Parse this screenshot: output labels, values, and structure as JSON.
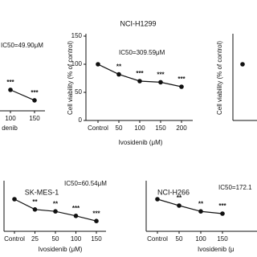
{
  "chart_data": [
    {
      "type": "line",
      "annotation": "IC50=49.90μM",
      "x_label": "denib",
      "categories": [
        "100",
        "150"
      ],
      "values": [
        40,
        20
      ],
      "significance": [
        "***",
        "***"
      ],
      "ylim": [
        0,
        150
      ],
      "color": "#111111"
    },
    {
      "type": "line",
      "title": "NCI-H1299",
      "annotation": "IC50=309.59μM",
      "x_label": "Ivosidenib (μM)",
      "y_label": "Cell viability (% of control)",
      "categories": [
        "Control",
        "50",
        "100",
        "150",
        "200"
      ],
      "values": [
        100,
        82,
        70,
        68,
        60
      ],
      "significance": [
        null,
        "**",
        "***",
        "***",
        "***"
      ],
      "ylim": [
        0,
        150
      ],
      "yticks": [
        0,
        50,
        100,
        150
      ],
      "color": "#111111"
    },
    {
      "type": "line",
      "y_label": "Cell viability (% of control)",
      "values": [
        100
      ],
      "ylim": [
        0,
        150
      ],
      "color": "#111111"
    },
    {
      "type": "line",
      "title": "SK-MES-1",
      "annotation": "IC50=60.54μM",
      "x_label": "Ivosidenib (μM)",
      "categories": [
        "Control",
        "25",
        "50",
        "100",
        "150"
      ],
      "values": [
        100,
        68,
        62,
        48,
        32
      ],
      "significance": [
        null,
        "**",
        "**",
        "***",
        "***"
      ],
      "ylim": [
        0,
        150
      ],
      "color": "#111111"
    },
    {
      "type": "line",
      "title": "NCI-H266",
      "annotation": "IC50=172.1",
      "x_label": "Ivosidenib (μ",
      "categories": [
        "Control",
        "50",
        "100",
        "150"
      ],
      "values": [
        100,
        80,
        62,
        55
      ],
      "significance": [
        null,
        "**",
        "**",
        "***"
      ],
      "ylim": [
        0,
        150
      ],
      "color": "#111111"
    }
  ]
}
